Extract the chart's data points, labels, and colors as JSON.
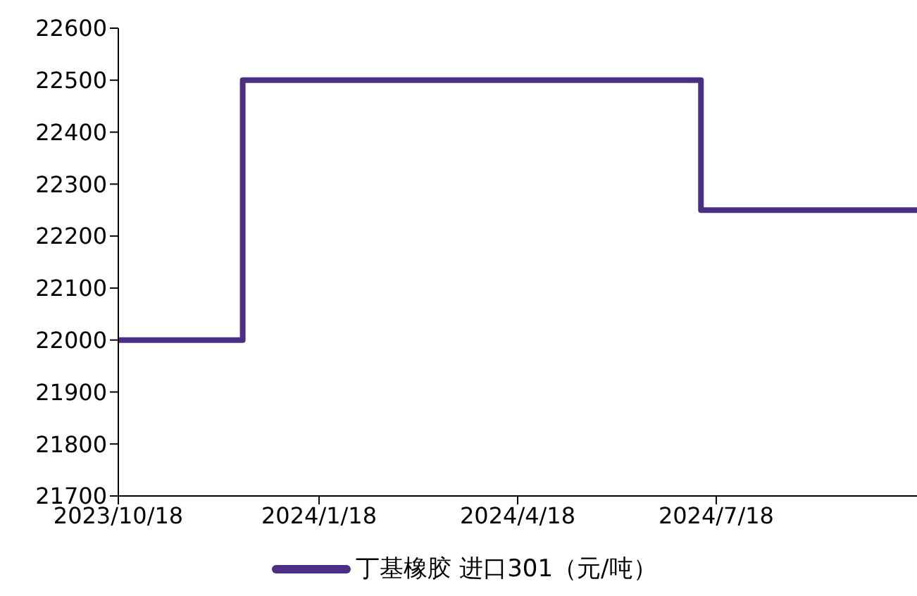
{
  "chart_data": {
    "type": "step",
    "x": [
      "2023-10-18",
      "2023-12-14",
      "2024-07-11",
      "2024-10-18"
    ],
    "series": [
      {
        "name": "丁基橡胶 进口301（元/吨）",
        "color": "#4b2f84",
        "values": [
          22000,
          22500,
          22250,
          22250
        ]
      }
    ],
    "xlim": [
      "2023-10-18",
      "2024-10-18"
    ],
    "xticks": [
      {
        "value": "2023-10-18",
        "label": "2023/10/18"
      },
      {
        "value": "2024-01-18",
        "label": "2024/1/18"
      },
      {
        "value": "2024-04-18",
        "label": "2024/4/18"
      },
      {
        "value": "2024-07-18",
        "label": "2024/7/18"
      }
    ],
    "ylim": [
      21700,
      22600
    ],
    "yticks": [
      21700,
      21800,
      21900,
      22000,
      22100,
      22200,
      22300,
      22400,
      22500,
      22600
    ],
    "grid": false,
    "legend": "bottom"
  }
}
